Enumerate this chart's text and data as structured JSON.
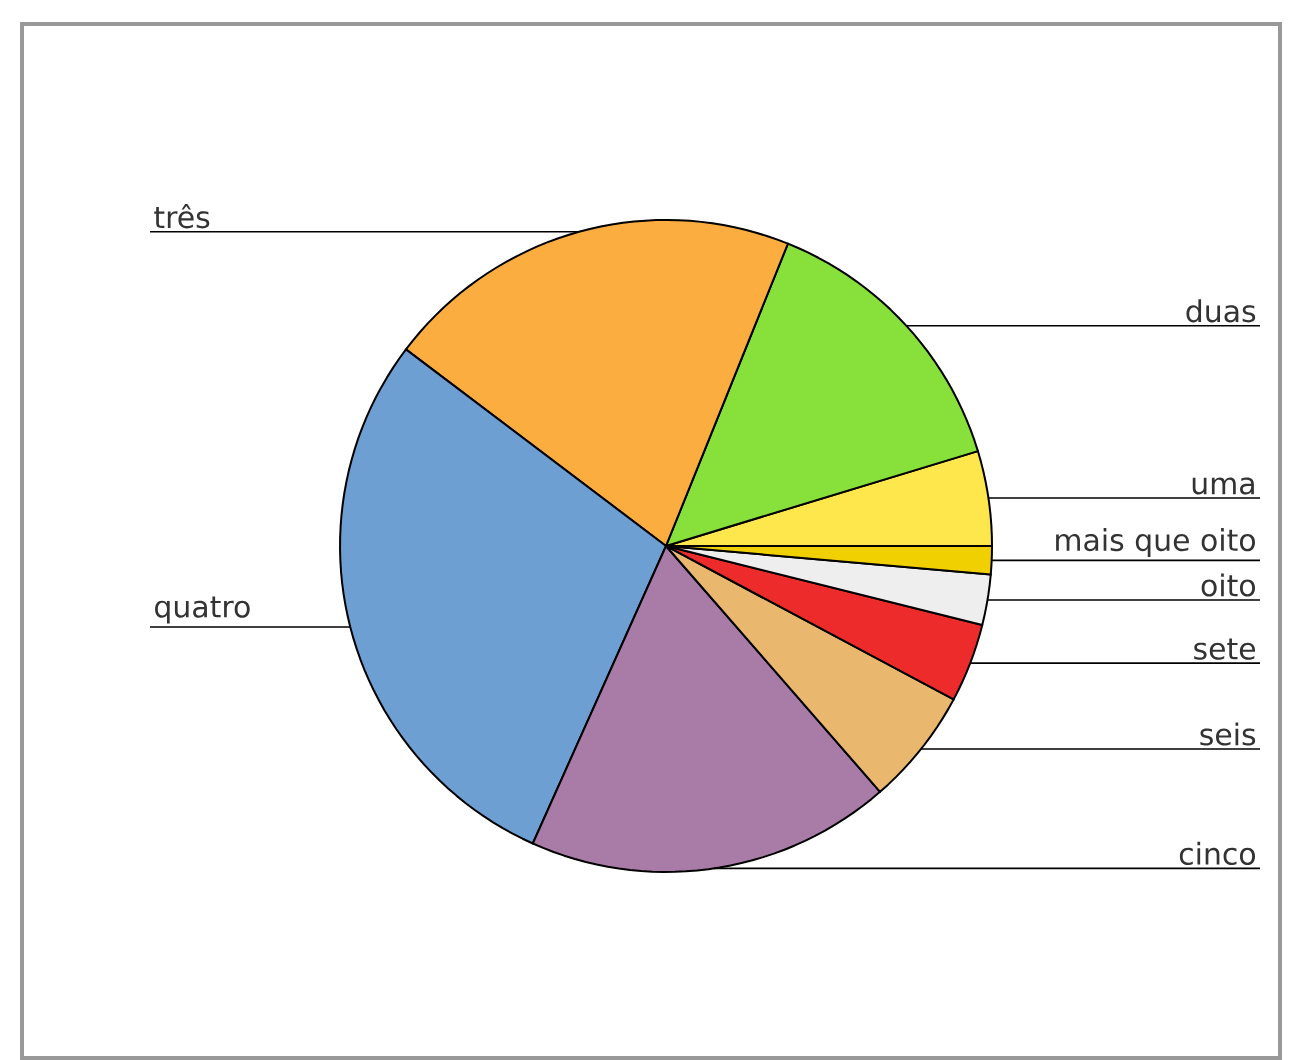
{
  "chart_data": {
    "type": "pie",
    "categories": [
      "uma",
      "duas",
      "três",
      "quatro",
      "cinco",
      "seis",
      "sete",
      "oito",
      "mais que oito"
    ],
    "values": [
      4.7,
      14.2,
      20.8,
      28.6,
      18.1,
      5.8,
      3.9,
      2.5,
      1.4
    ],
    "colors": [
      "#fde74c",
      "#88e03a",
      "#fbad40",
      "#6e9fd2",
      "#a97ca8",
      "#e9b86e",
      "#ee2b2b",
      "#eeeeee",
      "#f0d000"
    ]
  }
}
